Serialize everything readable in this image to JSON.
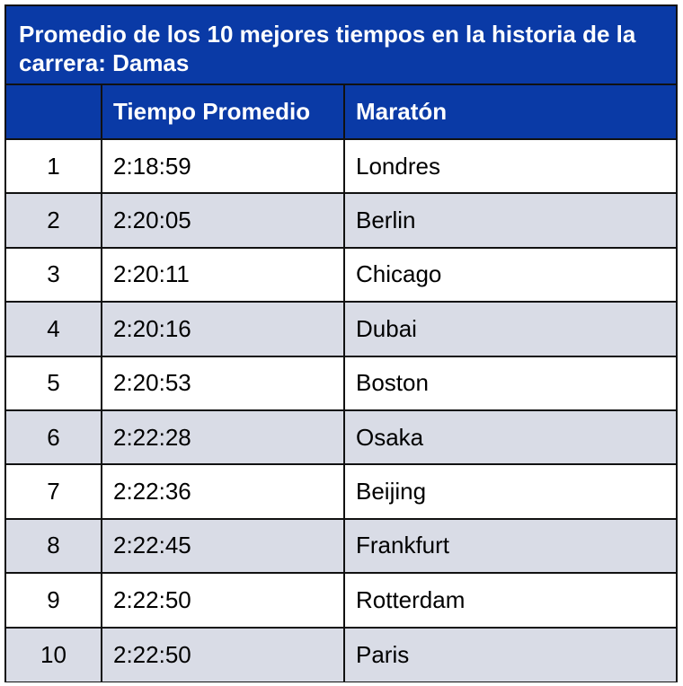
{
  "title": "Promedio de los 10 mejores tiempos en la historia de la carrera: Damas",
  "headers": [
    "",
    "Tiempo Promedio",
    "Maratón"
  ],
  "rows": [
    {
      "rank": "1",
      "time": "2:18:59",
      "marathon": "Londres"
    },
    {
      "rank": "2",
      "time": "2:20:05",
      "marathon": "Berlin"
    },
    {
      "rank": "3",
      "time": "2:20:11",
      "marathon": "Chicago"
    },
    {
      "rank": "4",
      "time": "2:20:16",
      "marathon": "Dubai"
    },
    {
      "rank": "5",
      "time": "2:20:53",
      "marathon": "Boston"
    },
    {
      "rank": "6",
      "time": "2:22:28",
      "marathon": "Osaka"
    },
    {
      "rank": "7",
      "time": "2:22:36",
      "marathon": "Beijing"
    },
    {
      "rank": "8",
      "time": "2:22:45",
      "marathon": "Frankfurt"
    },
    {
      "rank": "9",
      "time": "2:22:50",
      "marathon": "Rotterdam"
    },
    {
      "rank": "10",
      "time": "2:22:50",
      "marathon": "Paris"
    }
  ],
  "colors": {
    "header_bg": "#0a3aa6",
    "header_text": "#ffffff",
    "row_alt_bg": "#d9dce6",
    "row_bg": "#ffffff",
    "border": "#111111"
  }
}
